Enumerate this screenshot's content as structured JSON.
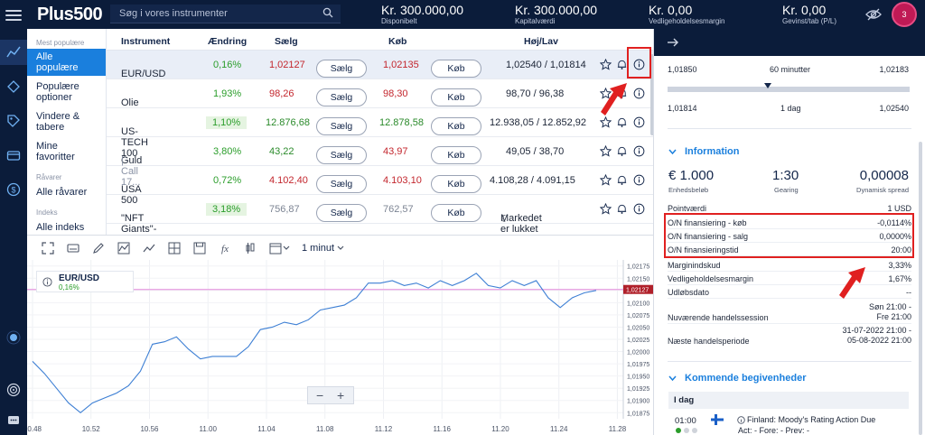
{
  "header": {
    "logo": "Plus500",
    "search_placeholder": "Søg i vores instrumenter",
    "metrics": [
      {
        "value": "Kr. 300.000,00",
        "label": "Disponibelt"
      },
      {
        "value": "Kr. 300.000,00",
        "label": "Kapitalværdi"
      },
      {
        "value": "Kr. 0,00",
        "label": "Vedligeholdelsesmargin"
      },
      {
        "value": "Kr. 0,00",
        "label": "Gevinst/tab (P/L)"
      }
    ],
    "avatar_badge": "3"
  },
  "categories": {
    "groups": [
      {
        "heading": "Mest populære",
        "items": [
          "Alle populære",
          "Populære optioner",
          "Vindere & tabere",
          "Mine favoritter"
        ]
      },
      {
        "heading": "Råvarer",
        "items": [
          "Alle råvarer"
        ]
      },
      {
        "heading": "Indeks",
        "items": [
          "Alle indeks"
        ]
      }
    ],
    "active": "Alle populære"
  },
  "table": {
    "columns": [
      "Instrument",
      "Ændring",
      "Sælg",
      "Køb",
      "Høj/Lav"
    ],
    "sell_label": "Sælg",
    "buy_label": "Køb",
    "rows": [
      {
        "name": "EUR/USD",
        "sub": "",
        "change": "0,16%",
        "sell": "1,02127",
        "buy": "1,02135",
        "highlow": "1,02540 / 1,01814",
        "selected": true
      },
      {
        "name": "Olie",
        "sub": "",
        "change": "1,93%",
        "sell": "98,26",
        "buy": "98,30",
        "highlow": "98,70 / 96,38"
      },
      {
        "name": "US-TECH 100",
        "sub": "",
        "change": "1,10%",
        "sell": "12.876,68",
        "buy": "12.878,58",
        "highlow": "12.938,05 / 12.852,92"
      },
      {
        "name": "Guld",
        "sub": " | Call 17...",
        "change": "3,80%",
        "sell": "43,22",
        "buy": "43,97",
        "highlow": "49,05 / 38,70"
      },
      {
        "name": "USA 500",
        "sub": "",
        "change": "0,72%",
        "sell": "4.102,40",
        "buy": "4.103,10",
        "highlow": "4.108,28 / 4.091,15"
      },
      {
        "name": "\"NFT Giants\"-i...",
        "sub": "",
        "change": "3,18%",
        "sell": "756,87",
        "buy": "762,57",
        "highlow": "Markedet er lukket"
      }
    ]
  },
  "chart_toolbar": {
    "interval": "1 minut"
  },
  "chart_data": {
    "type": "line",
    "instrument": "EUR/USD",
    "change": "0,16%",
    "x_ticks": [
      "10.48",
      "10.52",
      "10.56",
      "11.00",
      "11.04",
      "11.08",
      "11.12",
      "11.16",
      "11.20",
      "11.24",
      "11.28"
    ],
    "y_ticks": [
      "1,02175",
      "1,02150",
      "1,02125",
      "1,02100",
      "1,02075",
      "1,02050",
      "1,02025",
      "1,02000",
      "1,01975",
      "1,01950",
      "1,01925",
      "1,01900",
      "1,01875"
    ],
    "ylim": [
      1.0187,
      1.0218
    ],
    "current_price": "1,02127",
    "current_value": 1.02127,
    "series": [
      {
        "values": [
          1.0198,
          1.01955,
          1.01925,
          1.01895,
          1.01875,
          1.01895,
          1.01905,
          1.01915,
          1.0193,
          1.0196,
          1.02015,
          1.0202,
          1.0203,
          1.02005,
          1.01985,
          1.0199,
          1.0199,
          1.0199,
          1.0201,
          1.02045,
          1.0205,
          1.0206,
          1.02055,
          1.02065,
          1.02085,
          1.0209,
          1.02095,
          1.0211,
          1.0214,
          1.0214,
          1.02145,
          1.02135,
          1.0214,
          1.0213,
          1.02145,
          1.02135,
          1.02145,
          1.0216,
          1.02135,
          1.0213,
          1.02145,
          1.02135,
          1.02145,
          1.0211,
          1.0209,
          1.0211,
          1.0212,
          1.02125
        ]
      }
    ]
  },
  "right_panel": {
    "range": [
      {
        "left": "1,01850",
        "center": "60 minutter",
        "right": "1,02183"
      },
      {
        "left": "1,01814",
        "center": "1 dag",
        "right": "1,02540"
      }
    ],
    "info_title": "Information",
    "stats": [
      {
        "value": "€ 1.000",
        "label": "Enhedsbeløb"
      },
      {
        "value": "1:30",
        "label": "Gearing"
      },
      {
        "value": "0,00008",
        "label": "Dynamisk spread"
      }
    ],
    "details": [
      {
        "k": "Pointværdi",
        "v": "1 USD"
      },
      {
        "k": "O/N finansiering - køb",
        "v": "-0,0114%"
      },
      {
        "k": "O/N finansiering - salg",
        "v": "0,0000%"
      },
      {
        "k": "O/N finansieringstid",
        "v": "20:00"
      },
      {
        "k": "Marginindskud",
        "v": "3,33%"
      },
      {
        "k": "Vedligeholdelsesmargin",
        "v": "1,67%"
      },
      {
        "k": "Udløbsdato",
        "v": "--"
      }
    ],
    "session": {
      "k": "Nuværende handelssession",
      "v1": "Søn 21:00 -",
      "v2": "Fre 21:00"
    },
    "next_period": {
      "k": "Næste handelsperiode",
      "v1": "31-07-2022 21:00 -",
      "v2": "05-08-2022 21:00"
    },
    "events_title": "Kommende begivenheder",
    "today": "I dag",
    "event": {
      "time": "01:00",
      "title": "Finland: Moody's Rating Action Due",
      "meta": "Act: - Fore: - Prev: -"
    }
  }
}
